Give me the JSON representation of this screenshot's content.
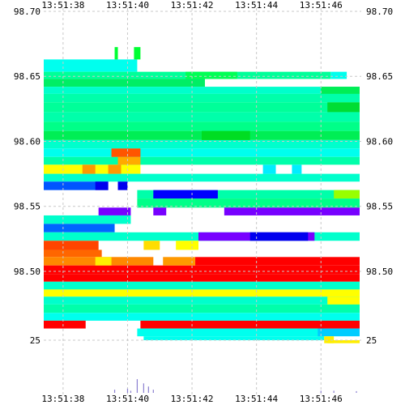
{
  "chart_data": {
    "type": "heatmap",
    "title": "",
    "xlabel": "",
    "ylabel": "",
    "x_ticks": [
      "13:51:38",
      "13:51:40",
      "13:51:42",
      "13:51:44",
      "13:51:46"
    ],
    "x_tick_seconds": [
      38,
      40,
      42,
      44,
      46
    ],
    "x_range_seconds": [
      37.4,
      47.2
    ],
    "price_y_ticks": [
      "98.70",
      "98.65",
      "98.60",
      "98.55",
      "98.50"
    ],
    "price_y_tick_values": [
      98.7,
      98.65,
      98.6,
      98.55,
      98.5
    ],
    "price_range": [
      98.447,
      98.7
    ],
    "volume_y_ticks": [
      "25"
    ],
    "volume_y_tick_values": [
      25
    ],
    "volume_range": [
      0,
      25
    ],
    "grid": true,
    "colorscale": [
      "#ff0000",
      "#ffff00",
      "#00ff00",
      "#00ffff",
      "#0000ff",
      "#8800ff"
    ],
    "bands": [
      {
        "price_top": 98.663,
        "price_bottom": 98.6535,
        "color": "#00ffee",
        "x_start": 37.4,
        "x_end": 40.3
      },
      {
        "price_top": 98.6535,
        "price_bottom": 98.648,
        "color": "#00ff99",
        "x_start": 37.4,
        "x_end": 46.3
      },
      {
        "price_top": 98.648,
        "price_bottom": 98.642,
        "color": "#00ee66",
        "x_start": 37.4,
        "x_end": 42.4
      },
      {
        "price_top": 98.642,
        "price_bottom": 98.6365,
        "color": "#00ffcc",
        "x_start": 37.4,
        "x_end": 47.2
      },
      {
        "price_top": 98.6365,
        "price_bottom": 98.63,
        "color": "#00ffaa",
        "x_start": 37.4,
        "x_end": 47.2
      },
      {
        "price_top": 98.63,
        "price_bottom": 98.6225,
        "color": "#00ff99",
        "x_start": 37.4,
        "x_end": 47.2
      },
      {
        "price_top": 98.6225,
        "price_bottom": 98.615,
        "color": "#00ffaa",
        "x_start": 37.4,
        "x_end": 47.2
      },
      {
        "price_top": 98.615,
        "price_bottom": 98.608,
        "color": "#00ff88",
        "x_start": 37.4,
        "x_end": 47.2
      },
      {
        "price_top": 98.608,
        "price_bottom": 98.601,
        "color": "#00ee55",
        "x_start": 37.4,
        "x_end": 47.2
      },
      {
        "price_top": 98.601,
        "price_bottom": 98.5945,
        "color": "#00ffcc",
        "x_start": 37.4,
        "x_end": 47.2
      },
      {
        "price_top": 98.5945,
        "price_bottom": 98.588,
        "color": "#00ffee",
        "x_start": 37.4,
        "x_end": 47.2
      },
      {
        "price_top": 98.588,
        "price_bottom": 98.582,
        "color": "#00ffaa",
        "x_start": 37.4,
        "x_end": 47.2
      },
      {
        "price_top": 98.582,
        "price_bottom": 98.575,
        "color": "#ffff00",
        "x_start": 37.4,
        "x_end": 40.4
      },
      {
        "price_top": 98.575,
        "price_bottom": 98.569,
        "color": "#00ffcc",
        "x_start": 37.4,
        "x_end": 47.2
      },
      {
        "price_top": 98.569,
        "price_bottom": 98.5625,
        "color": "#0055ff",
        "x_start": 37.4,
        "x_end": 39.4
      },
      {
        "price_top": 98.5625,
        "price_bottom": 98.556,
        "color": "#00ffaa",
        "x_start": 40.3,
        "x_end": 47.2
      },
      {
        "price_top": 98.556,
        "price_bottom": 98.549,
        "color": "#00ff88",
        "x_start": 40.3,
        "x_end": 47.2
      },
      {
        "price_top": 98.549,
        "price_bottom": 98.543,
        "color": "#7700ff",
        "x_start": 39.1,
        "x_end": 40.1
      },
      {
        "price_top": 98.543,
        "price_bottom": 98.5365,
        "color": "#00ffcc",
        "x_start": 37.4,
        "x_end": 40.1
      },
      {
        "price_top": 98.5365,
        "price_bottom": 98.53,
        "color": "#0066ff",
        "x_start": 37.4,
        "x_end": 39.6
      },
      {
        "price_top": 98.53,
        "price_bottom": 98.5235,
        "color": "#00ffcc",
        "x_start": 37.4,
        "x_end": 47.2
      },
      {
        "price_top": 98.5235,
        "price_bottom": 98.5165,
        "color": "#ff4400",
        "x_start": 37.4,
        "x_end": 39.1
      },
      {
        "price_top": 98.5165,
        "price_bottom": 98.511,
        "color": "#ff6600",
        "x_start": 37.4,
        "x_end": 39.2
      },
      {
        "price_top": 98.511,
        "price_bottom": 98.5045,
        "color": "#ff8800",
        "x_start": 37.4,
        "x_end": 40.8
      },
      {
        "price_top": 98.5045,
        "price_bottom": 98.498,
        "color": "#ff0000",
        "x_start": 37.4,
        "x_end": 47.2
      },
      {
        "price_top": 98.498,
        "price_bottom": 98.492,
        "color": "#ff0000",
        "x_start": 37.4,
        "x_end": 47.2
      },
      {
        "price_top": 98.492,
        "price_bottom": 98.486,
        "color": "#00ffcc",
        "x_start": 37.4,
        "x_end": 47.2
      },
      {
        "price_top": 98.486,
        "price_bottom": 98.4805,
        "color": "#ffff00",
        "x_start": 37.4,
        "x_end": 47.2
      },
      {
        "price_top": 98.4805,
        "price_bottom": 98.4745,
        "color": "#00ffcc",
        "x_start": 37.4,
        "x_end": 47.2
      },
      {
        "price_top": 98.4745,
        "price_bottom": 98.468,
        "color": "#00ffaa",
        "x_start": 37.4,
        "x_end": 47.2
      },
      {
        "price_top": 98.468,
        "price_bottom": 98.462,
        "color": "#00ffee",
        "x_start": 37.4,
        "x_end": 47.2
      },
      {
        "price_top": 98.462,
        "price_bottom": 98.456,
        "color": "#ff0000",
        "x_start": 37.4,
        "x_end": 38.7
      },
      {
        "price_top": 98.462,
        "price_bottom": 98.456,
        "color": "#ff0000",
        "x_start": 40.4,
        "x_end": 47.2
      },
      {
        "price_top": 98.456,
        "price_bottom": 98.45,
        "color": "#00ffee",
        "x_start": 40.3,
        "x_end": 46.1
      },
      {
        "price_top": 98.45,
        "price_bottom": 98.447,
        "color": "#00ffee",
        "x_start": 40.5,
        "x_end": 46.1
      },
      {
        "price_top": 98.447,
        "price_bottom": 98.4447,
        "color": "#ffee00",
        "x_start": 46.2,
        "x_end": 47.2
      }
    ],
    "cells": [
      {
        "x_start": 39.6,
        "x_end": 39.7,
        "price_top": 98.6725,
        "price_bottom": 98.663,
        "color": "#00ff33"
      },
      {
        "x_start": 40.2,
        "x_end": 40.4,
        "price_top": 98.6725,
        "price_bottom": 98.663,
        "color": "#00ff33"
      },
      {
        "x_start": 41.8,
        "x_end": 43.4,
        "price_top": 98.6535,
        "price_bottom": 98.648,
        "color": "#00ff55"
      },
      {
        "x_start": 46.3,
        "x_end": 46.8,
        "price_top": 98.6535,
        "price_bottom": 98.648,
        "color": "#00ffee"
      },
      {
        "x_start": 46.0,
        "x_end": 47.2,
        "price_top": 98.642,
        "price_bottom": 98.6365,
        "color": "#00ee55"
      },
      {
        "x_start": 46.2,
        "x_end": 47.2,
        "price_top": 98.63,
        "price_bottom": 98.6225,
        "color": "#00dd33"
      },
      {
        "x_start": 42.3,
        "x_end": 43.8,
        "price_top": 98.608,
        "price_bottom": 98.601,
        "color": "#00dd22"
      },
      {
        "x_start": 39.5,
        "x_end": 40.4,
        "price_top": 98.5945,
        "price_bottom": 98.588,
        "color": "#ff5500"
      },
      {
        "x_start": 39.7,
        "x_end": 40.4,
        "price_top": 98.588,
        "price_bottom": 98.582,
        "color": "#ffaa00"
      },
      {
        "x_start": 38.6,
        "x_end": 39.0,
        "price_top": 98.582,
        "price_bottom": 98.575,
        "color": "#ff9900"
      },
      {
        "x_start": 39.4,
        "x_end": 39.8,
        "price_top": 98.582,
        "price_bottom": 98.575,
        "color": "#ff9900"
      },
      {
        "x_start": 44.2,
        "x_end": 44.6,
        "price_top": 98.582,
        "price_bottom": 98.575,
        "color": "#00eeff"
      },
      {
        "x_start": 45.1,
        "x_end": 45.4,
        "price_top": 98.582,
        "price_bottom": 98.575,
        "color": "#00eeff"
      },
      {
        "x_start": 39.0,
        "x_end": 39.4,
        "price_top": 98.569,
        "price_bottom": 98.5625,
        "color": "#0000ee"
      },
      {
        "x_start": 39.7,
        "x_end": 40.0,
        "price_top": 98.569,
        "price_bottom": 98.5625,
        "color": "#0000ee"
      },
      {
        "x_start": 40.8,
        "x_end": 42.8,
        "price_top": 98.5625,
        "price_bottom": 98.556,
        "color": "#0000ff"
      },
      {
        "x_start": 46.4,
        "x_end": 47.2,
        "price_top": 98.5625,
        "price_bottom": 98.556,
        "color": "#99ff00"
      },
      {
        "x_start": 43.0,
        "x_end": 47.2,
        "price_top": 98.549,
        "price_bottom": 98.543,
        "color": "#7700ff"
      },
      {
        "x_start": 40.8,
        "x_end": 41.2,
        "price_top": 98.549,
        "price_bottom": 98.543,
        "color": "#7700ff"
      },
      {
        "x_start": 42.2,
        "x_end": 45.8,
        "price_top": 98.53,
        "price_bottom": 98.5235,
        "color": "#7700ff"
      },
      {
        "x_start": 43.8,
        "x_end": 45.6,
        "price_top": 98.53,
        "price_bottom": 98.5235,
        "color": "#0000ee"
      },
      {
        "x_start": 41.5,
        "x_end": 42.2,
        "price_top": 98.5235,
        "price_bottom": 98.5165,
        "color": "#ffff00"
      },
      {
        "x_start": 40.5,
        "x_end": 41.0,
        "price_top": 98.5235,
        "price_bottom": 98.5165,
        "color": "#ffdd00"
      },
      {
        "x_start": 39.0,
        "x_end": 39.5,
        "price_top": 98.511,
        "price_bottom": 98.5045,
        "color": "#ffee00"
      },
      {
        "x_start": 41.1,
        "x_end": 42.1,
        "price_top": 98.511,
        "price_bottom": 98.5045,
        "color": "#ff9900"
      },
      {
        "x_start": 42.1,
        "x_end": 47.2,
        "price_top": 98.511,
        "price_bottom": 98.5045,
        "color": "#ff0000"
      },
      {
        "x_start": 46.2,
        "x_end": 47.2,
        "price_top": 98.4805,
        "price_bottom": 98.4745,
        "color": "#ffff00"
      },
      {
        "x_start": 45.9,
        "x_end": 47.2,
        "price_top": 98.456,
        "price_bottom": 98.45,
        "color": "#00ccff"
      },
      {
        "x_start": 46.1,
        "x_end": 46.4,
        "price_top": 98.45,
        "price_bottom": 98.4447,
        "color": "#ffee00"
      }
    ],
    "volume_bars": [
      {
        "x": 39.6,
        "volume": 1.5
      },
      {
        "x": 40.0,
        "volume": 2.0
      },
      {
        "x": 40.1,
        "volume": 1.0
      },
      {
        "x": 40.3,
        "volume": 6.5
      },
      {
        "x": 40.5,
        "volume": 4.5
      },
      {
        "x": 40.65,
        "volume": 3.0
      },
      {
        "x": 40.8,
        "volume": 1.5
      },
      {
        "x": 46.0,
        "volume": 1.0
      },
      {
        "x": 46.4,
        "volume": 1.0
      },
      {
        "x": 47.1,
        "volume": 0.8
      }
    ]
  }
}
